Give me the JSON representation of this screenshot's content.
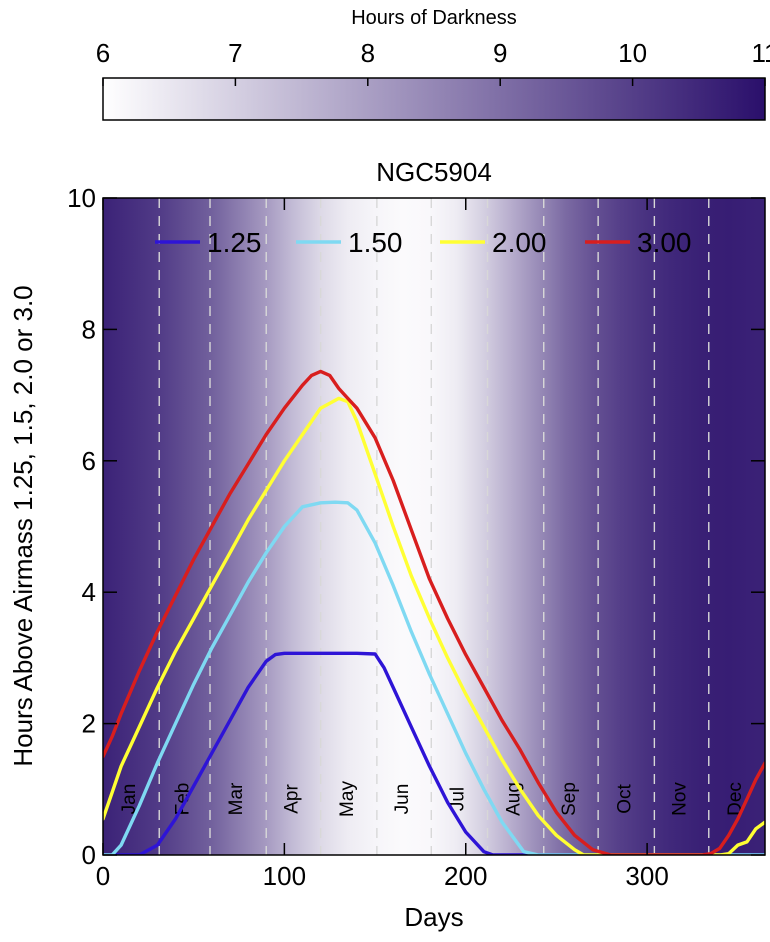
{
  "colorbar": {
    "title": "Hours of Darkness",
    "min": 6,
    "max": 11,
    "ticks": [
      "6",
      "7",
      "8",
      "9",
      "10",
      "11"
    ],
    "color_low": "#ffffff",
    "color_high": "#2a0f6b"
  },
  "chart_data": {
    "type": "line",
    "title": "NGC5904",
    "xlabel": "Days",
    "ylabel": "Hours Above Airmass 1.25, 1.5, 2.0 or 3.0",
    "xlim": [
      0,
      365
    ],
    "ylim": [
      0,
      10
    ],
    "x_ticks": [
      "0",
      "100",
      "200",
      "300"
    ],
    "y_ticks": [
      "0",
      "2",
      "4",
      "6",
      "8",
      "10"
    ],
    "legend_position": "top",
    "months": [
      {
        "label": "Jan",
        "start": 0
      },
      {
        "label": "Feb",
        "start": 31
      },
      {
        "label": "Mar",
        "start": 59
      },
      {
        "label": "Apr",
        "start": 90
      },
      {
        "label": "May",
        "start": 120
      },
      {
        "label": "Jun",
        "start": 151
      },
      {
        "label": "Jul",
        "start": 181
      },
      {
        "label": "Aug",
        "start": 212
      },
      {
        "label": "Sep",
        "start": 243
      },
      {
        "label": "Oct",
        "start": 273
      },
      {
        "label": "Nov",
        "start": 304
      },
      {
        "label": "Dec",
        "start": 334
      }
    ],
    "background_darkness": {
      "days": [
        0,
        30,
        60,
        90,
        105,
        120,
        135,
        150,
        165,
        180,
        195,
        210,
        225,
        240,
        255,
        270,
        285,
        300,
        315,
        330,
        345,
        365
      ],
      "hours": [
        10.6,
        10.1,
        9.3,
        8.1,
        7.4,
        6.8,
        6.4,
        6.2,
        6.1,
        6.15,
        6.4,
        7.0,
        7.7,
        8.4,
        9.1,
        9.6,
        10.0,
        10.3,
        10.5,
        10.65,
        10.7,
        10.6
      ]
    },
    "series": [
      {
        "name": "1.25",
        "color": "#2e14d6",
        "x": [
          0,
          8,
          12,
          20,
          30,
          40,
          50,
          60,
          70,
          80,
          90,
          95,
          100,
          120,
          140,
          150,
          155,
          160,
          170,
          180,
          190,
          200,
          210,
          215,
          220,
          365
        ],
        "y": [
          0,
          0,
          0,
          0,
          0.15,
          0.55,
          1.05,
          1.55,
          2.05,
          2.55,
          2.95,
          3.05,
          3.07,
          3.07,
          3.07,
          3.06,
          2.85,
          2.55,
          1.95,
          1.35,
          0.8,
          0.35,
          0.05,
          0,
          0,
          0
        ]
      },
      {
        "name": "1.50",
        "color": "#7fd9f2",
        "x": [
          0,
          5,
          10,
          20,
          30,
          40,
          50,
          60,
          70,
          80,
          90,
          100,
          110,
          120,
          128,
          135,
          140,
          150,
          160,
          170,
          180,
          190,
          200,
          210,
          220,
          232,
          240,
          365
        ],
        "y": [
          0,
          0,
          0.15,
          0.75,
          1.4,
          2.0,
          2.6,
          3.15,
          3.65,
          4.15,
          4.6,
          5.0,
          5.3,
          5.36,
          5.37,
          5.36,
          5.25,
          4.75,
          4.1,
          3.4,
          2.75,
          2.15,
          1.55,
          1.0,
          0.5,
          0.05,
          0,
          0
        ]
      },
      {
        "name": "2.00",
        "color": "#ffff33",
        "x": [
          0,
          5,
          10,
          20,
          30,
          40,
          50,
          60,
          70,
          80,
          90,
          100,
          110,
          120,
          130,
          135,
          140,
          150,
          160,
          170,
          180,
          190,
          200,
          210,
          220,
          230,
          240,
          250,
          260,
          265,
          270,
          340,
          345,
          350,
          355,
          360,
          365
        ],
        "y": [
          0.55,
          0.95,
          1.35,
          1.95,
          2.55,
          3.1,
          3.6,
          4.1,
          4.6,
          5.1,
          5.55,
          6.0,
          6.4,
          6.8,
          6.95,
          6.9,
          6.6,
          5.8,
          5.0,
          4.25,
          3.6,
          3.0,
          2.45,
          1.95,
          1.45,
          1.0,
          0.6,
          0.3,
          0.08,
          0,
          0,
          0,
          0.02,
          0.15,
          0.2,
          0.4,
          0.5
        ]
      },
      {
        "name": "3.00",
        "color": "#d81e1e",
        "x": [
          0,
          5,
          10,
          20,
          30,
          40,
          50,
          60,
          70,
          80,
          90,
          100,
          110,
          115,
          120,
          125,
          130,
          135,
          140,
          150,
          160,
          170,
          180,
          190,
          200,
          210,
          220,
          230,
          240,
          250,
          260,
          270,
          280,
          285,
          290,
          330,
          335,
          340,
          345,
          350,
          355,
          360,
          365
        ],
        "y": [
          1.5,
          1.8,
          2.15,
          2.8,
          3.4,
          3.95,
          4.5,
          5.0,
          5.5,
          5.95,
          6.4,
          6.8,
          7.15,
          7.3,
          7.36,
          7.3,
          7.1,
          6.95,
          6.8,
          6.35,
          5.7,
          4.95,
          4.2,
          3.6,
          3.05,
          2.55,
          2.05,
          1.6,
          1.1,
          0.65,
          0.3,
          0.08,
          0,
          0,
          0,
          0,
          0.02,
          0.1,
          0.3,
          0.55,
          0.85,
          1.15,
          1.4
        ]
      }
    ]
  }
}
